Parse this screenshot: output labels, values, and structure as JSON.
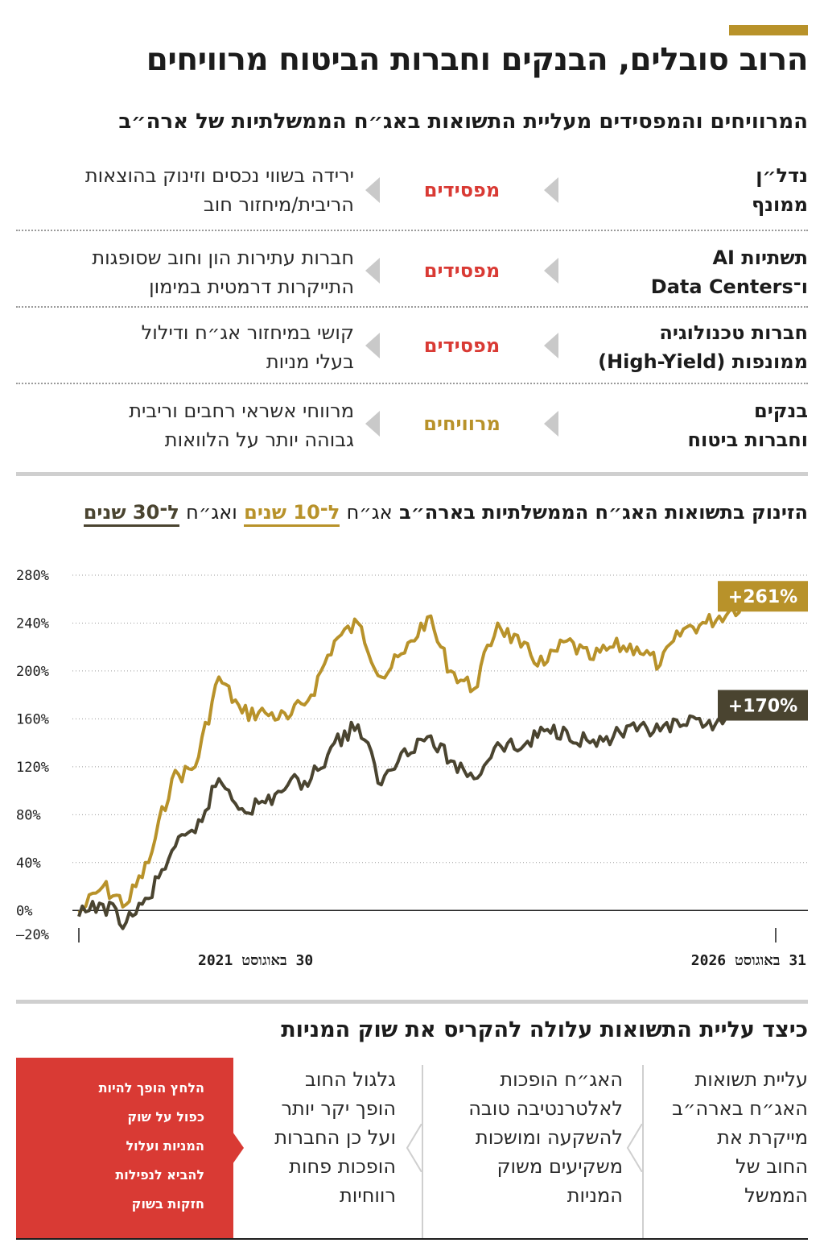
{
  "title": "הרוב סובלים, הבנקים וחברות הביטוח מרוויחים",
  "subtitle": "המרוויחים והמפסידים מעליית התשואות באג״ח הממשלתיות של ארה״ב",
  "rows": [
    {
      "sector_line1": "נדל״ן",
      "sector_line2": "ממונף",
      "status": "מפסידים",
      "explain_line1": "ירידה בשווי נכסים וזינוק בהוצאות",
      "explain_line2": "הריבית/מיחזור חוב"
    },
    {
      "sector_line1": "תשתיות AI",
      "sector_line2": "ו־Data Centers",
      "status": "מפסידים",
      "explain_line1": "חברות עתירות הון וחוב שסופגות",
      "explain_line2": "התייקרות דרמטית במימון"
    },
    {
      "sector_line1": "חברות טכנולוגיה",
      "sector_line2": "ממונפות (High-Yield)",
      "status": "מפסידים",
      "explain_line1": "קושי במיחזור אג״ח ודילול",
      "explain_line2": "בעלי מניות"
    },
    {
      "sector_line1": "בנקים",
      "sector_line2": "וחברות ביטוח",
      "status": "מרוויחים",
      "explain_line1": "מרווחי אשראי רחבים וריבית",
      "explain_line2": "גבוהה יותר על הלוואות"
    }
  ],
  "colors": {
    "loss": "#d93a34",
    "gain": "#b8922a",
    "series10": "#b8922a",
    "series30": "#4a4430"
  },
  "chart_heading": {
    "main": "הזינוק בתשואות האג״ח הממשלתיות בארה״ב",
    "bond_prefix": "אג״ח",
    "ten_label": "ל־10 שנים",
    "and_bond": "ואג״ח",
    "thirty_label": "ל־30 שנים"
  },
  "chart_data": {
    "type": "line",
    "title": "הזינוק בתשואות האג״ח הממשלתיות בארה״ב",
    "x_start_label": "30 באוגוסט 2021",
    "x_end_label": "31 באוגוסט 2026",
    "x": [
      "2021-08-30",
      "2021-11-01",
      "2022-01-01",
      "2022-03-01",
      "2022-05-01",
      "2022-07-01",
      "2022-09-01",
      "2022-11-01",
      "2023-01-01",
      "2023-03-01",
      "2023-05-01",
      "2023-07-01",
      "2023-09-01",
      "2023-11-01",
      "2024-01-01",
      "2024-03-01",
      "2024-05-01",
      "2024-07-01",
      "2024-09-01",
      "2024-11-01",
      "2025-01-01",
      "2025-03-01",
      "2025-05-01",
      "2025-07-01",
      "2025-09-01",
      "2025-11-01",
      "2026-01-01",
      "2026-03-01",
      "2026-05-01",
      "2026-07-01",
      "2026-08-31"
    ],
    "series": [
      {
        "name": "ל־10 שנים",
        "end_label": "+261%",
        "values": [
          -2,
          20,
          5,
          40,
          110,
          120,
          195,
          165,
          165,
          160,
          180,
          225,
          240,
          195,
          215,
          245,
          200,
          185,
          240,
          220,
          205,
          225,
          210,
          220,
          220,
          205,
          235,
          240,
          250,
          261,
          261
        ]
      },
      {
        "name": "ל־30 שנים",
        "end_label": "+170%",
        "values": [
          -5,
          5,
          -10,
          10,
          50,
          65,
          110,
          85,
          90,
          105,
          110,
          140,
          155,
          105,
          135,
          145,
          125,
          110,
          140,
          135,
          150,
          150,
          140,
          145,
          150,
          150,
          155,
          155,
          165,
          170,
          170
        ]
      }
    ],
    "ylim": [
      -20,
      280
    ],
    "yticks": [
      280,
      240,
      200,
      160,
      120,
      80,
      40,
      0,
      -20
    ],
    "ytick_labels": [
      "280%",
      "240%",
      "200%",
      "160%",
      "120%",
      "80%",
      "40%",
      "0%",
      "–20%"
    ],
    "grid": true
  },
  "section2_title": "כיצד עליית התשואות עלולה להקריס את שוק המניות",
  "flow": [
    {
      "lines": [
        "עליית תשואות",
        "האג״ח בארה״ב",
        "מייקרת את",
        "החוב של",
        "הממשל"
      ]
    },
    {
      "lines": [
        "האג״ח הופכות",
        "לאלטרנטיבה טובה",
        "להשקעה ומושכות",
        "משקיעים משוק",
        "המניות"
      ]
    },
    {
      "lines": [
        "גלגול החוב",
        "הופך יקר יותר",
        "ועל כן החברות",
        "הופכות פחות",
        "רווחיות"
      ]
    },
    {
      "lines": [
        "הלחץ הופך להיות",
        "כפול על שוק",
        "המניות ועלול",
        "להביא לנפילות",
        "חזקות בשוק"
      ]
    }
  ]
}
